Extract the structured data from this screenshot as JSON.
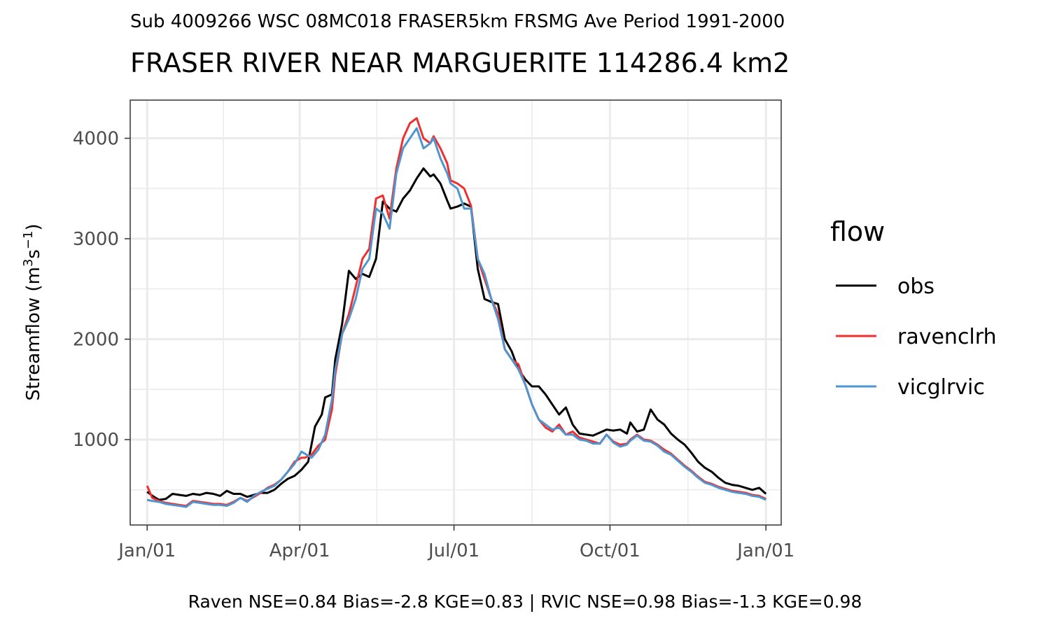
{
  "header": {
    "subtitle": "Sub 4009266 WSC 08MC018 FRASER5km FRSMG Ave Period 1991-2000",
    "title": "FRASER RIVER NEAR MARGUERITE 114286.4 km2"
  },
  "caption": "Raven NSE=0.84 Bias=-2.8 KGE=0.83 | RVIC NSE=0.98 Bias=-1.3 KGE=0.98",
  "chart_data": {
    "type": "line",
    "title": "FRASER RIVER NEAR MARGUERITE 114286.4 km2",
    "subtitle": "Sub 4009266 WSC 08MC018 FRASER5km FRSMG Ave Period 1991-2000",
    "xlabel": "",
    "ylabel": "Streamflow (m3s-1)",
    "x_unit": "day of year",
    "xlim": [
      -9,
      375
    ],
    "ylim": [
      150,
      4380
    ],
    "x_ticks": [
      {
        "value": 1,
        "label": "Jan/01"
      },
      {
        "value": 91,
        "label": "Apr/01"
      },
      {
        "value": 182,
        "label": "Jul/01"
      },
      {
        "value": 274,
        "label": "Oct/01"
      },
      {
        "value": 366,
        "label": "Jan/01"
      }
    ],
    "x_minor_ticks": [
      46,
      136.5,
      228,
      320
    ],
    "y_ticks": [
      1000,
      2000,
      3000,
      4000
    ],
    "y_minor_ticks": [
      500,
      1500,
      2500,
      3500
    ],
    "grid": true,
    "legend": {
      "title": "flow",
      "position": "right"
    },
    "series": [
      {
        "name": "obs",
        "color": "#000000",
        "x": [
          1,
          5,
          8,
          12,
          16,
          20,
          24,
          28,
          32,
          36,
          40,
          44,
          48,
          52,
          56,
          60,
          64,
          68,
          72,
          76,
          80,
          84,
          88,
          92,
          96,
          100,
          104,
          106,
          110,
          112,
          116,
          120,
          124,
          128,
          132,
          136,
          140,
          144,
          148,
          152,
          156,
          160,
          164,
          168,
          170,
          174,
          178,
          180,
          184,
          188,
          192,
          196,
          200,
          204,
          208,
          212,
          216,
          220,
          224,
          228,
          232,
          236,
          240,
          244,
          248,
          252,
          256,
          260,
          264,
          268,
          272,
          276,
          280,
          284,
          286,
          290,
          294,
          298,
          302,
          306,
          310,
          314,
          318,
          322,
          326,
          330,
          334,
          338,
          342,
          346,
          350,
          354,
          358,
          362,
          366
        ],
        "values": [
          480,
          430,
          400,
          410,
          460,
          450,
          440,
          460,
          450,
          470,
          460,
          440,
          490,
          460,
          460,
          430,
          450,
          470,
          470,
          500,
          560,
          610,
          640,
          700,
          780,
          1130,
          1250,
          1420,
          1450,
          1800,
          2150,
          2680,
          2600,
          2650,
          2620,
          2800,
          3370,
          3300,
          3270,
          3400,
          3480,
          3600,
          3700,
          3620,
          3640,
          3550,
          3380,
          3300,
          3320,
          3350,
          3320,
          2700,
          2400,
          2370,
          2350,
          2000,
          1880,
          1700,
          1600,
          1530,
          1530,
          1450,
          1350,
          1250,
          1320,
          1150,
          1060,
          1050,
          1040,
          1070,
          1100,
          1090,
          1100,
          1060,
          1170,
          1080,
          1100,
          1300,
          1200,
          1150,
          1060,
          1000,
          950,
          870,
          780,
          720,
          680,
          620,
          570,
          550,
          540,
          520,
          500,
          520,
          460
        ]
      },
      {
        "name": "ravenclrh",
        "color": "#F03030",
        "x": [
          1,
          4,
          8,
          12,
          16,
          20,
          24,
          28,
          32,
          36,
          40,
          44,
          48,
          52,
          56,
          60,
          64,
          68,
          72,
          76,
          80,
          84,
          88,
          92,
          94,
          98,
          102,
          106,
          110,
          112,
          116,
          120,
          124,
          128,
          132,
          136,
          140,
          144,
          148,
          152,
          156,
          160,
          164,
          168,
          170,
          174,
          178,
          180,
          184,
          188,
          192,
          196,
          200,
          204,
          208,
          212,
          216,
          220,
          224,
          228,
          232,
          236,
          240,
          244,
          248,
          252,
          256,
          260,
          264,
          268,
          272,
          276,
          280,
          284,
          286,
          290,
          294,
          298,
          302,
          306,
          310,
          314,
          318,
          322,
          326,
          330,
          334,
          338,
          342,
          346,
          350,
          354,
          358,
          362,
          366
        ],
        "values": [
          540,
          420,
          390,
          370,
          360,
          350,
          340,
          390,
          380,
          370,
          360,
          360,
          350,
          380,
          420,
          390,
          430,
          470,
          520,
          550,
          600,
          680,
          780,
          820,
          820,
          850,
          940,
          1000,
          1300,
          1650,
          2050,
          2250,
          2520,
          2800,
          2900,
          3400,
          3430,
          3200,
          3700,
          4000,
          4150,
          4200,
          4000,
          3950,
          4020,
          3900,
          3750,
          3580,
          3550,
          3500,
          3330,
          2800,
          2600,
          2400,
          2250,
          1900,
          1800,
          1750,
          1550,
          1350,
          1200,
          1120,
          1080,
          1150,
          1050,
          1080,
          1020,
          1000,
          980,
          960,
          1050,
          980,
          950,
          960,
          1000,
          1050,
          1000,
          990,
          950,
          900,
          860,
          800,
          740,
          690,
          630,
          580,
          560,
          530,
          510,
          490,
          480,
          470,
          450,
          440,
          410
        ]
      },
      {
        "name": "vicglrvic",
        "color": "#4F96D0",
        "x": [
          1,
          4,
          8,
          12,
          16,
          20,
          24,
          28,
          32,
          36,
          40,
          44,
          48,
          52,
          56,
          60,
          64,
          68,
          72,
          76,
          80,
          84,
          88,
          92,
          94,
          98,
          102,
          106,
          110,
          112,
          116,
          120,
          124,
          128,
          132,
          136,
          140,
          144,
          148,
          152,
          156,
          160,
          164,
          168,
          170,
          174,
          178,
          180,
          184,
          188,
          192,
          196,
          200,
          204,
          208,
          212,
          216,
          220,
          224,
          228,
          232,
          236,
          240,
          244,
          248,
          252,
          256,
          260,
          264,
          268,
          272,
          276,
          280,
          284,
          286,
          290,
          294,
          298,
          302,
          306,
          310,
          314,
          318,
          322,
          326,
          330,
          334,
          338,
          342,
          346,
          350,
          354,
          358,
          362,
          366
        ],
        "values": [
          400,
          390,
          380,
          360,
          350,
          340,
          330,
          380,
          370,
          360,
          350,
          350,
          340,
          370,
          420,
          380,
          440,
          480,
          510,
          540,
          600,
          680,
          760,
          880,
          860,
          820,
          900,
          1050,
          1400,
          1700,
          2050,
          2200,
          2400,
          2700,
          2800,
          3300,
          3250,
          3100,
          3650,
          3900,
          4000,
          4100,
          3900,
          3950,
          4000,
          3800,
          3650,
          3550,
          3500,
          3300,
          3300,
          2800,
          2650,
          2400,
          2200,
          1900,
          1800,
          1700,
          1550,
          1350,
          1200,
          1150,
          1100,
          1120,
          1050,
          1050,
          1000,
          990,
          960,
          960,
          1050,
          970,
          930,
          950,
          990,
          1040,
          990,
          980,
          940,
          880,
          850,
          790,
          730,
          680,
          620,
          570,
          550,
          520,
          500,
          480,
          470,
          460,
          440,
          430,
          400
        ]
      }
    ]
  }
}
